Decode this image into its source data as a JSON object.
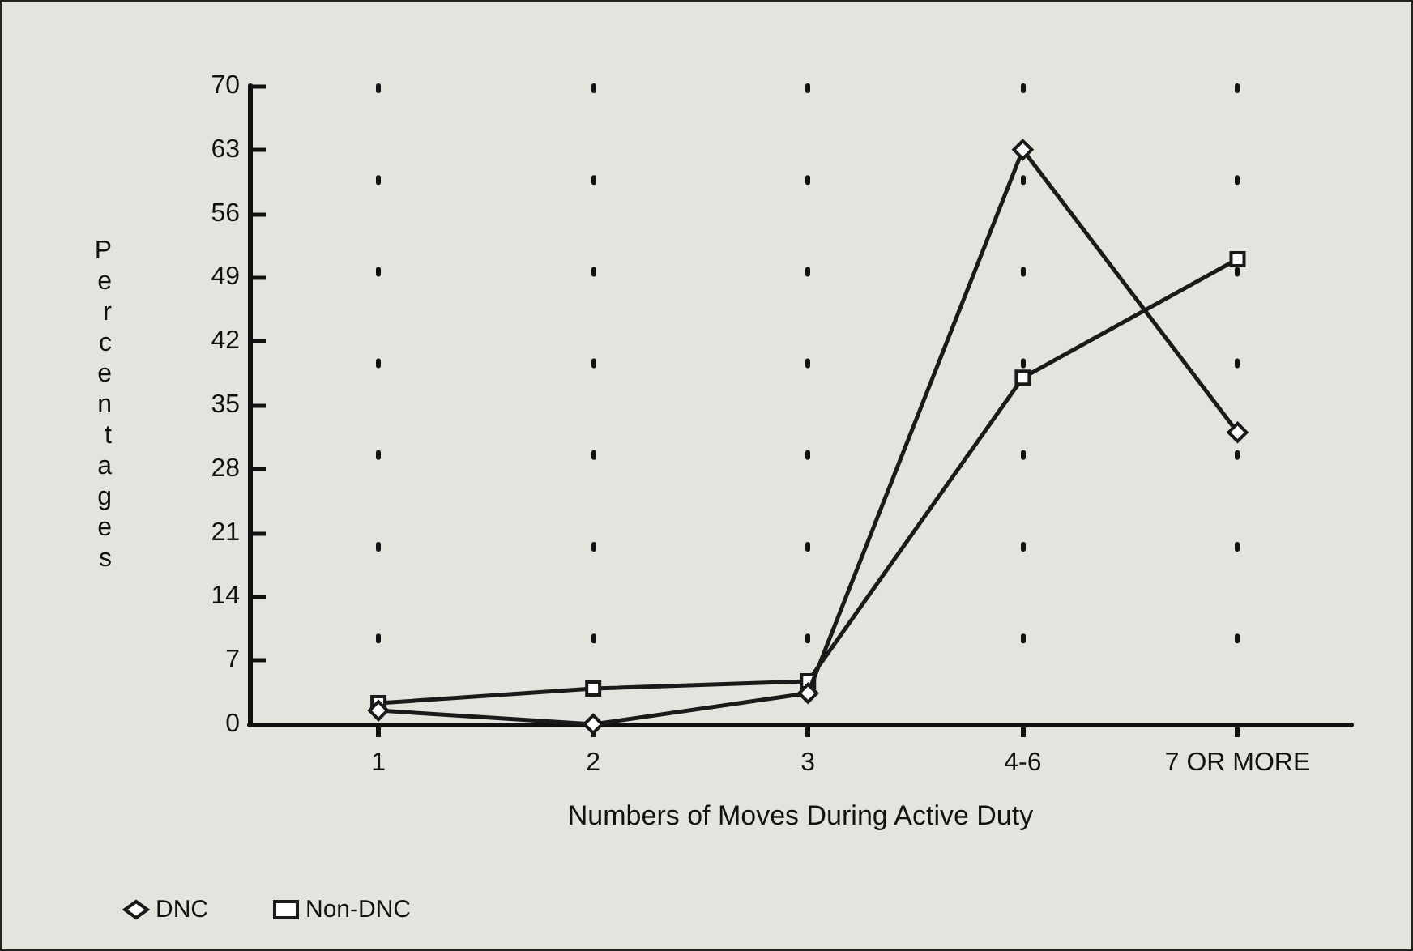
{
  "chart_data": {
    "type": "line",
    "xlabel": "Numbers of Moves During Active Duty",
    "ylabel": "Percentages",
    "categories": [
      "1",
      "2",
      "3",
      "4-6",
      "7 OR MORE"
    ],
    "series": [
      {
        "name": "DNC",
        "color": "#1a1a1a",
        "marker": "diamond",
        "values": [
          1.5,
          0,
          3.4,
          63,
          32
        ]
      },
      {
        "name": "Non-DNC",
        "color": "#1a1a1a",
        "marker": "square",
        "values": [
          2.3,
          3.9,
          4.7,
          38,
          51
        ]
      }
    ],
    "ylim": [
      0,
      70
    ],
    "yticks": [
      0,
      7,
      14,
      21,
      28,
      35,
      42,
      49,
      56,
      63,
      70
    ],
    "grid": "x",
    "legend": "bottom left",
    "line_style": "solid"
  }
}
